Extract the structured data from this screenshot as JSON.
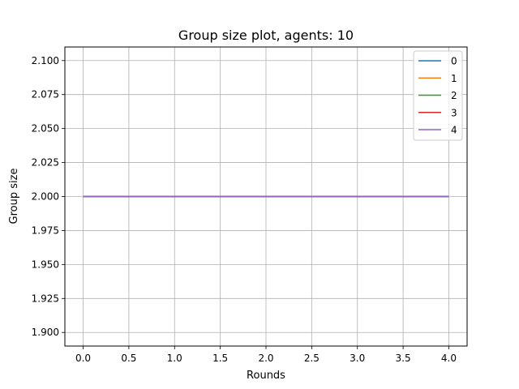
{
  "chart_data": {
    "type": "line",
    "title": "Group size plot, agents: 10",
    "xlabel": "Rounds",
    "ylabel": "Group size",
    "xlim": [
      -0.2,
      4.2
    ],
    "ylim": [
      1.89,
      2.11
    ],
    "xticks": [
      0.0,
      0.5,
      1.0,
      1.5,
      2.0,
      2.5,
      3.0,
      3.5,
      4.0
    ],
    "xtick_labels": [
      "0.0",
      "0.5",
      "1.0",
      "1.5",
      "2.0",
      "2.5",
      "3.0",
      "3.5",
      "4.0"
    ],
    "yticks": [
      1.9,
      1.925,
      1.95,
      1.975,
      2.0,
      2.025,
      2.05,
      2.075,
      2.1
    ],
    "ytick_labels": [
      "1.900",
      "1.925",
      "1.950",
      "1.975",
      "2.000",
      "2.025",
      "2.050",
      "2.075",
      "2.100"
    ],
    "grid": true,
    "legend_position": "top-right",
    "x": [
      0,
      1,
      2,
      3,
      4
    ],
    "series": [
      {
        "name": "0",
        "color": "#1f77b4",
        "values": [
          2,
          2,
          2,
          2,
          2
        ]
      },
      {
        "name": "1",
        "color": "#ff7f0e",
        "values": [
          2,
          2,
          2,
          2,
          2
        ]
      },
      {
        "name": "2",
        "color": "#2ca02c",
        "values": [
          2,
          2,
          2,
          2,
          2
        ]
      },
      {
        "name": "3",
        "color": "#d62728",
        "values": [
          2,
          2,
          2,
          2,
          2
        ]
      },
      {
        "name": "4",
        "color": "#9467bd",
        "values": [
          2,
          2,
          2,
          2,
          2
        ]
      }
    ]
  }
}
